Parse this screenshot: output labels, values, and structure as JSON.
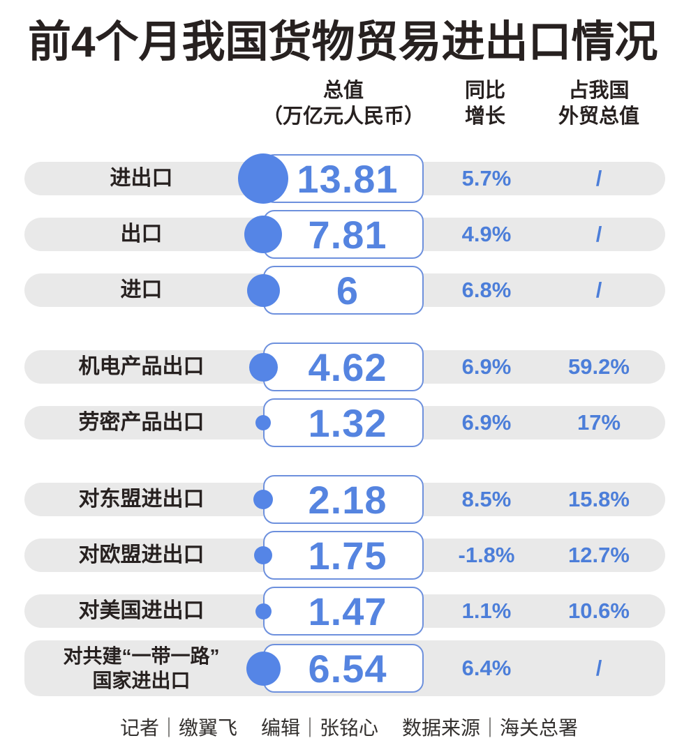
{
  "title": "前4个月我国货物贸易进出口情况",
  "columns": {
    "value": {
      "line1": "总值",
      "line2": "（万亿元人民币）"
    },
    "yoy": {
      "line1": "同比",
      "line2": "增长"
    },
    "share": {
      "line1": "占我国",
      "line2": "外贸总值"
    }
  },
  "footer": {
    "credits": [
      {
        "label": "记者",
        "name": "缴翼飞"
      },
      {
        "label": "编辑",
        "name": "张铭心"
      },
      {
        "label": "数据来源",
        "name": "海关总署"
      }
    ],
    "separator": "｜"
  },
  "colors": {
    "ink": "#272120",
    "pill_gray": "#e9e9e9",
    "bubble_blue": "#5585e6",
    "box_border_blue": "#6d90dd",
    "number_blue": "#5584e0",
    "percent_blue": "#4c7ed9"
  },
  "chart_data": {
    "type": "bar",
    "title": "前4个月我国货物贸易进出口情况",
    "unit": "万亿元人民币",
    "columns": [
      "总值（万亿元人民币）",
      "同比增长",
      "占我国外贸总值"
    ],
    "rows": [
      {
        "label_lines": [
          "进出口"
        ],
        "value": 13.81,
        "value_text": "13.81",
        "yoy": "5.7%",
        "share": "/",
        "group_start": false
      },
      {
        "label_lines": [
          "出口"
        ],
        "value": 7.81,
        "value_text": "7.81",
        "yoy": "4.9%",
        "share": "/",
        "group_start": false
      },
      {
        "label_lines": [
          "进口"
        ],
        "value": 6,
        "value_text": "6",
        "yoy": "6.8%",
        "share": "/",
        "group_start": false
      },
      {
        "label_lines": [
          "机电产品出口"
        ],
        "value": 4.62,
        "value_text": "4.62",
        "yoy": "6.9%",
        "share": "59.2%",
        "group_start": true
      },
      {
        "label_lines": [
          "劳密产品出口"
        ],
        "value": 1.32,
        "value_text": "1.32",
        "yoy": "6.9%",
        "share": "17%",
        "group_start": false
      },
      {
        "label_lines": [
          "对东盟进出口"
        ],
        "value": 2.18,
        "value_text": "2.18",
        "yoy": "8.5%",
        "share": "15.8%",
        "group_start": true
      },
      {
        "label_lines": [
          "对欧盟进出口"
        ],
        "value": 1.75,
        "value_text": "1.75",
        "yoy": "-1.8%",
        "share": "12.7%",
        "group_start": false
      },
      {
        "label_lines": [
          "对美国进出口"
        ],
        "value": 1.47,
        "value_text": "1.47",
        "yoy": "1.1%",
        "share": "10.6%",
        "group_start": false
      },
      {
        "label_lines": [
          "对共建“一带一路”",
          "国家进出口"
        ],
        "value": 6.54,
        "value_text": "6.54",
        "yoy": "6.4%",
        "share": "/",
        "group_start": false
      }
    ]
  }
}
